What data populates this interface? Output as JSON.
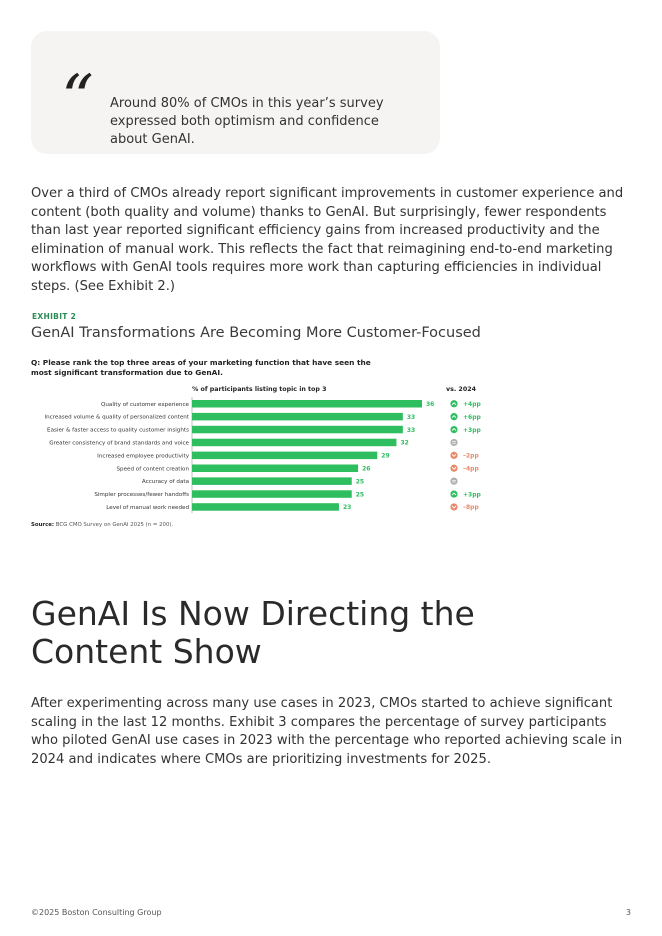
{
  "quote": {
    "mark": "“",
    "text": "Around 80% of CMOs in this year’s survey expressed both optimism and confidence about GenAI."
  },
  "paragraph1": "Over a third of CMOs already report significant improvements in customer experience and content (both quality and volume) thanks to GenAI. But surprisingly, fewer respondents than last year reported significant efficiency gains from increased productivity and the elimination of manual work. This reflects the fact that reimagining end-to-end marketing workflows with GenAI tools requires more work than capturing efficiencies in individual steps. (See Exhibit 2.)",
  "exhibit": {
    "label": "EXHIBIT 2",
    "title": "GenAI Transformations Are Becoming More Customer-Focused",
    "question": "Q: Please rank the top three areas of your marketing function that have seen the most significant transformation due to GenAI.",
    "source_label": "Source:",
    "source_text": " BCG CMO Survey on GenAI 2025 (n = 200)."
  },
  "chart_data": {
    "type": "bar",
    "orientation": "horizontal",
    "column_header": "% of participants listing topic in top 3",
    "change_header": "vs. 2024",
    "categories": [
      "Quality of customer experience",
      "Increased volume & quality of personalized content",
      "Easier & faster access to quality customer insights",
      "Greater consistency of brand standards and voice",
      "Increased employee productivity",
      "Speed of content creation",
      "Accuracy of data",
      "Simpler processes/fewer handoffs",
      "Level of manual work needed"
    ],
    "values": [
      36,
      33,
      33,
      32,
      29,
      26,
      25,
      25,
      23
    ],
    "changes": [
      "+4pp",
      "+6pp",
      "+3pp",
      "",
      "–2pp",
      "–4pp",
      "",
      "+3pp",
      "–8pp"
    ],
    "change_direction": [
      "up",
      "up",
      "up",
      "flat",
      "down",
      "down",
      "flat",
      "up",
      "down"
    ],
    "xlim": [
      0,
      40
    ],
    "bar_color": "#2ebd5f",
    "up_color": "#2ebd5f",
    "down_color": "#e8896b",
    "flat_color": "#b0b0b0"
  },
  "heading": "GenAI Is Now Directing the Content Show",
  "paragraph2": "After experimenting across many use cases in 2023, CMOs started to achieve significant scaling in the last 12 months. Exhibit 3 compares the percentage of survey participants who piloted GenAI use cases in 2023 with the percentage who reported achieving scale in 2024 and indicates where CMOs are prioritizing investments for 2025.",
  "footer": {
    "copyright": "©2025 Boston Consulting Group",
    "page_number": "3"
  }
}
